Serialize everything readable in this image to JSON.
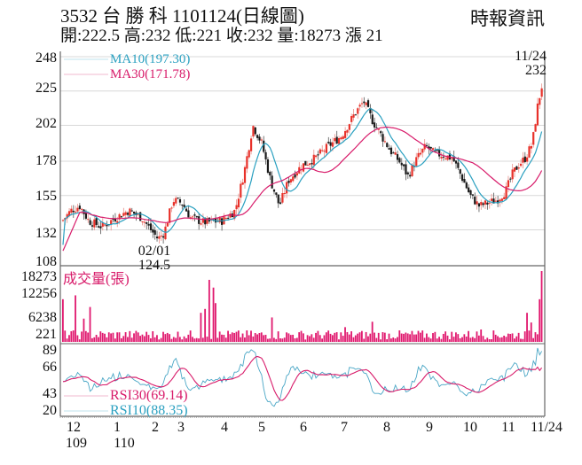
{
  "header": {
    "title": "3532  台 勝 科 1101124(日線圖)",
    "subtitle": "開:222.5 高:232 低:221 收:232 量:18273 漲 21",
    "brand": "時報資訊"
  },
  "colors": {
    "up": "#e8312a",
    "down": "#1a1a1a",
    "ma10": "#2aa0c0",
    "ma30": "#d81b6a",
    "volume": "#e0186e",
    "rsi30": "#d81b6a",
    "rsi10": "#4aa7c6",
    "grid": "#d8d8d8",
    "axis": "#666666"
  },
  "price_panel": {
    "y_ticks": [
      "248",
      "225",
      "202",
      "178",
      "155",
      "132",
      "108"
    ],
    "legend": {
      "ma10": "MA10(197.30)",
      "ma30": "MA30(171.78)"
    },
    "annotation_high": {
      "date": "11/24",
      "value": "232"
    },
    "annotation_low": {
      "date": "02/01",
      "value": "124.5"
    }
  },
  "volume_panel": {
    "label": "成交量(張)",
    "y_ticks": [
      "18273",
      "12256",
      "6238",
      "221"
    ]
  },
  "rsi_panel": {
    "y_ticks": [
      "89",
      "66",
      "43",
      "20"
    ],
    "legend": {
      "rsi30": "RSI30(69.14)",
      "rsi10": "RSI10(88.35)"
    }
  },
  "x_axis": {
    "ticks": [
      "12",
      "1",
      "2",
      "3",
      "4",
      "5",
      "6",
      "7",
      "8",
      "9",
      "10",
      "11",
      "11/24"
    ],
    "years": [
      "109",
      "110"
    ]
  },
  "chart_data": {
    "type": "candlestick",
    "title": "3532 台勝科 1101124(日線圖)",
    "ohlc_latest": {
      "open": 222.5,
      "high": 232,
      "low": 221,
      "close": 232,
      "volume": 18273,
      "change": 21
    },
    "price_ylim": [
      108,
      248
    ],
    "volume_ylim": [
      221,
      18273
    ],
    "rsi_ylim": [
      20,
      89
    ],
    "x_months": [
      "12",
      "1",
      "2",
      "3",
      "4",
      "5",
      "6",
      "7",
      "8",
      "9",
      "10",
      "11",
      "11/24"
    ],
    "close_approx_by_month": [
      {
        "month": "12 (109)",
        "close": 140
      },
      {
        "month": "1 (110)",
        "close": 140
      },
      {
        "month": "2",
        "close": 130
      },
      {
        "month": "3",
        "close": 145
      },
      {
        "month": "4",
        "close": 140
      },
      {
        "month": "5",
        "close": 190
      },
      {
        "month": "6",
        "close": 168
      },
      {
        "month": "7",
        "close": 185
      },
      {
        "month": "8",
        "close": 190
      },
      {
        "month": "9",
        "close": 183
      },
      {
        "month": "10",
        "close": 150
      },
      {
        "month": "11",
        "close": 165
      },
      {
        "month": "11/24",
        "close": 232
      }
    ],
    "series": [
      {
        "name": "MA10",
        "last": 197.3
      },
      {
        "name": "MA30",
        "last": 171.78
      },
      {
        "name": "RSI30",
        "last": 69.14
      },
      {
        "name": "RSI10",
        "last": 88.35
      }
    ],
    "annotations": [
      {
        "date": "02/01",
        "value": 124.5,
        "type": "low"
      },
      {
        "date": "11/24",
        "value": 232,
        "type": "high"
      }
    ]
  }
}
